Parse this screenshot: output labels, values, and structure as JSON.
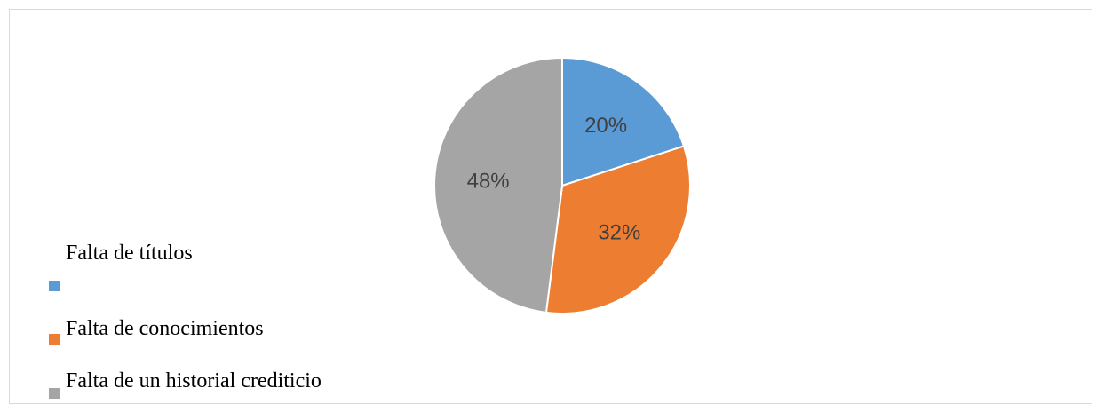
{
  "chart_data": {
    "type": "pie",
    "categories": [
      "Falta de títulos",
      "Falta de conocimientos",
      "Falta de un historial crediticio"
    ],
    "values": [
      20,
      32,
      48
    ],
    "labels": [
      "20%",
      "32%",
      "48%"
    ],
    "colors": [
      "#5b9bd5",
      "#ed7d31",
      "#a5a5a5"
    ],
    "start_angle_deg": 0,
    "direction": "clockwise",
    "legend_position": "left",
    "title": ""
  }
}
